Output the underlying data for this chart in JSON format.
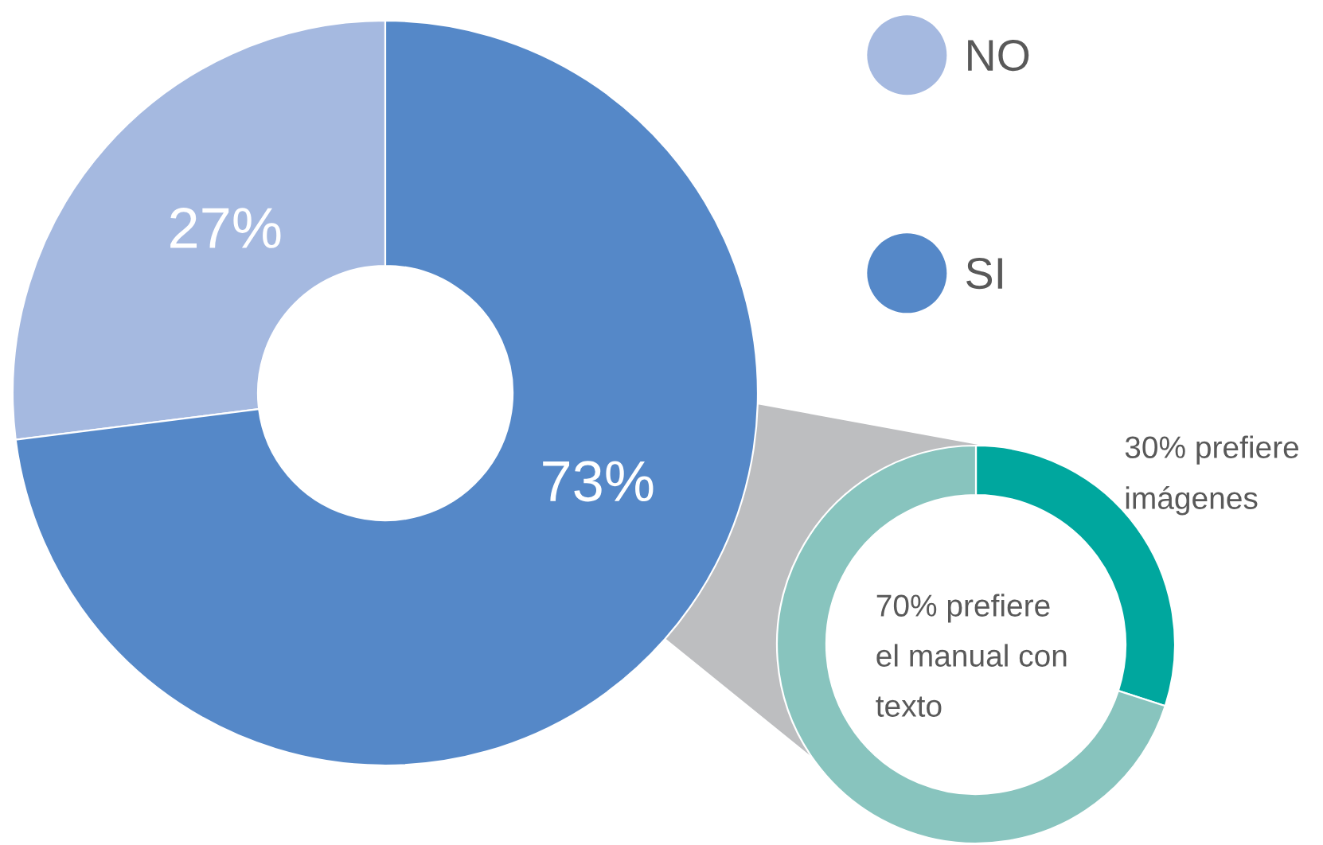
{
  "chart_data": [
    {
      "type": "donut",
      "categories": [
        "NO",
        "SI"
      ],
      "values": [
        27,
        73
      ],
      "colors": [
        "#a5b9e0",
        "#5588c8"
      ],
      "value_labels": [
        "27%",
        "73%"
      ],
      "legend": "top right"
    },
    {
      "type": "donut",
      "categories": [
        null,
        null
      ],
      "values": [
        30,
        70
      ],
      "colors": [
        "#00a79e",
        "#88c4be"
      ],
      "value_labels": [
        "30% prefiere\nimágenes",
        "70% prefiere\nel manual con\ntexto"
      ]
    }
  ]
}
